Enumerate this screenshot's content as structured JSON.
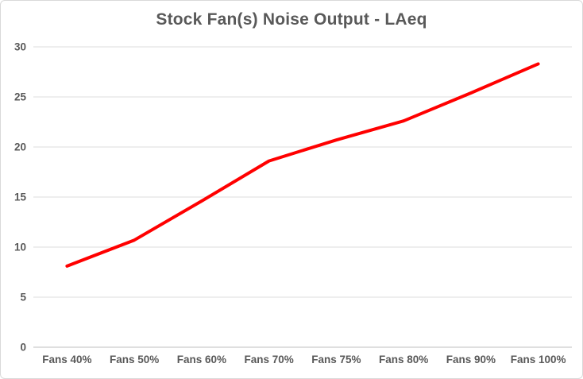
{
  "chart_data": {
    "type": "line",
    "title": "Stock Fan(s) Noise Output - LAeq",
    "categories": [
      "Fans 40%",
      "Fans 50%",
      "Fans 60%",
      "Fans 70%",
      "Fans 75%",
      "Fans 80%",
      "Fans 90%",
      "Fans 100%"
    ],
    "series": [
      {
        "name": "LAeq",
        "color": "#ff0000",
        "values": [
          8.1,
          10.7,
          14.6,
          18.6,
          20.7,
          22.6,
          25.4,
          28.3
        ]
      }
    ],
    "xlabel": "",
    "ylabel": "",
    "ylim": [
      0,
      30
    ],
    "ytick_step": 5,
    "ytick_labels": [
      "0",
      "5",
      "10",
      "15",
      "20",
      "25",
      "30"
    ],
    "grid": "horizontal",
    "legend": "none",
    "colors": {
      "line": "#ff0000",
      "text": "#595959",
      "gridline": "#dcdcdc",
      "axis": "#bfbfbf",
      "background": "#ffffff",
      "border": "#d9d9d9"
    }
  }
}
